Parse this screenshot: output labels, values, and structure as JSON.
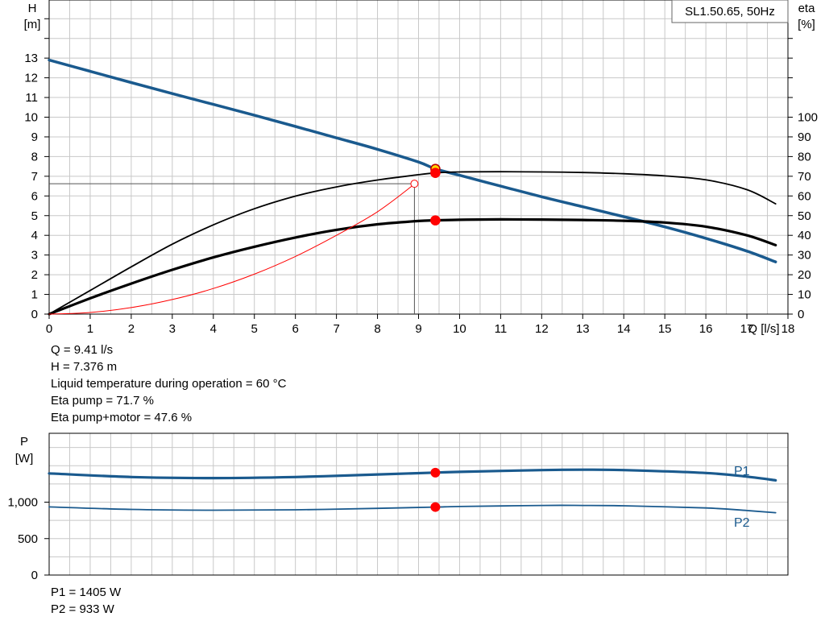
{
  "chart_data": [
    {
      "type": "line",
      "title": "SL1.50.65, 50Hz",
      "xlabel": "Q [l/s]",
      "ylabel_left": [
        "H",
        "[m]"
      ],
      "ylabel_right": [
        "eta",
        "[%]"
      ],
      "xlim": [
        0,
        18
      ],
      "ylim_left": [
        0,
        13
      ],
      "ylim_right": [
        0,
        100
      ],
      "x_ticks": [
        "0",
        "1",
        "2",
        "3",
        "4",
        "5",
        "6",
        "7",
        "8",
        "9",
        "10",
        "11",
        "12",
        "13",
        "14",
        "15",
        "16",
        "17",
        "18"
      ],
      "y_ticks_left": [
        "0",
        "1",
        "2",
        "3",
        "4",
        "5",
        "6",
        "7",
        "8",
        "9",
        "10",
        "11",
        "12",
        "13"
      ],
      "y_ticks_right": [
        "0",
        "10",
        "20",
        "30",
        "40",
        "50",
        "60",
        "70",
        "80",
        "90",
        "100"
      ],
      "grid": true,
      "series": [
        {
          "axis": "left",
          "color": "#1a5a8e",
          "width": 3.5,
          "x": [
            0,
            1,
            2,
            3,
            4,
            5,
            6,
            7,
            8,
            9,
            9.41,
            10,
            11,
            12,
            13,
            14,
            15,
            16,
            17,
            17.7
          ],
          "y": [
            12.9,
            12.33,
            11.76,
            11.2,
            10.65,
            10.1,
            9.53,
            8.95,
            8.37,
            7.72,
            7.376,
            7.05,
            6.5,
            5.96,
            5.45,
            4.95,
            4.43,
            3.85,
            3.2,
            2.65
          ]
        },
        {
          "axis": "right",
          "color": "#000000",
          "width": 1.8,
          "x": [
            0,
            1,
            2,
            3,
            4,
            5,
            6,
            7,
            8,
            9,
            9.41,
            10,
            11,
            12,
            13,
            14,
            15,
            16,
            17,
            17.7
          ],
          "y": [
            0,
            12,
            24,
            35.5,
            45.3,
            53.5,
            59.9,
            64.6,
            68.1,
            70.8,
            71.7,
            72.2,
            72.3,
            72.2,
            71.9,
            71.3,
            70.2,
            68.2,
            63.2,
            56
          ]
        },
        {
          "axis": "right",
          "color": "#000000",
          "width": 3.2,
          "x": [
            0,
            1,
            2,
            3,
            4,
            5,
            6,
            7,
            8,
            9,
            9.41,
            10,
            11,
            12,
            13,
            14,
            15,
            16,
            17,
            17.7
          ],
          "y": [
            0,
            8,
            15.5,
            22.5,
            28.8,
            34.2,
            38.9,
            42.8,
            45.6,
            47.3,
            47.6,
            47.9,
            48.1,
            48,
            47.8,
            47.4,
            46.5,
            44.4,
            40,
            35
          ]
        },
        {
          "axis": "left",
          "color": "#ff0000",
          "width": 1,
          "x": [
            0,
            1,
            2,
            3,
            4,
            5,
            6,
            7,
            8,
            8.9
          ],
          "y": [
            0,
            0.08,
            0.33,
            0.74,
            1.3,
            2.03,
            2.93,
            4.0,
            5.2,
            6.6
          ]
        }
      ],
      "markers": [
        {
          "x": 9.41,
          "y": 7.376,
          "axis": "left",
          "fill": "#ffd700",
          "stroke": "#c00000"
        },
        {
          "x": 9.41,
          "y": 71.7,
          "axis": "right",
          "fill": "#ff0000",
          "stroke": "#ff0000"
        },
        {
          "x": 9.41,
          "y": 47.6,
          "axis": "right",
          "fill": "#ff0000",
          "stroke": "#ff0000"
        }
      ],
      "reference_point": {
        "x": 8.9,
        "y": 6.62
      },
      "annotations": [
        "Q = 9.41 l/s",
        "H = 7.376 m",
        "Liquid temperature during operation = 60 °C",
        "Eta pump = 71.7 %",
        "Eta pump+motor = 47.6 %"
      ]
    },
    {
      "type": "line",
      "ylabel": [
        "P",
        "[W]"
      ],
      "xlim": [
        0,
        18
      ],
      "ylim": [
        0,
        1800
      ],
      "y_ticks": [
        {
          "value": 0,
          "label": "0"
        },
        {
          "value": 500,
          "label": "500"
        },
        {
          "value": 1000,
          "label": "1,000"
        }
      ],
      "grid": true,
      "series": [
        {
          "name": "P1",
          "color": "#1a5a8e",
          "width": 3.2,
          "x": [
            0,
            2,
            4,
            6,
            8,
            9.41,
            10,
            12,
            13,
            14,
            16,
            17,
            17.7
          ],
          "y": [
            1395,
            1345,
            1330,
            1345,
            1380,
            1405,
            1415,
            1440,
            1445,
            1440,
            1400,
            1350,
            1300
          ]
        },
        {
          "name": "P2",
          "color": "#1a5a8e",
          "width": 1.8,
          "x": [
            0,
            2,
            4,
            6,
            8,
            9.41,
            10,
            12,
            13,
            14,
            16,
            17,
            17.7
          ],
          "y": [
            935,
            900,
            890,
            895,
            915,
            933,
            940,
            955,
            955,
            950,
            920,
            885,
            855
          ]
        }
      ],
      "markers": [
        {
          "x": 9.41,
          "y": 1405,
          "fill": "#ff0000"
        },
        {
          "x": 9.41,
          "y": 933,
          "fill": "#ff0000"
        }
      ],
      "annotations": [
        "P1 = 1405 W",
        "P2 = 933 W"
      ]
    }
  ]
}
